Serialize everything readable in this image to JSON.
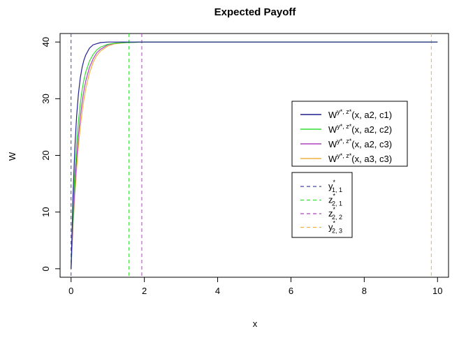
{
  "chart_data": {
    "type": "line",
    "title": "Expected Payoff",
    "xlabel": "x",
    "ylabel": "W",
    "xlim": [
      -0.3,
      10.3
    ],
    "ylim": [
      -1.5,
      41.5
    ],
    "xticks": [
      0,
      2,
      4,
      6,
      8,
      10
    ],
    "yticks": [
      0,
      10,
      20,
      30,
      40
    ],
    "grid": false,
    "series": [
      {
        "name": "W^{y*, z*}(x, a2, c1)",
        "color": "#1f1f8f",
        "x": [
          0,
          0.05,
          0.1,
          0.15,
          0.2,
          0.25,
          0.3,
          0.35,
          0.4,
          0.5,
          0.6,
          0.7,
          0.8,
          1.0,
          1.2,
          1.5,
          2.0,
          3.0,
          5.0,
          7.0,
          10.0
        ],
        "y": [
          0,
          12.4,
          20.9,
          26.8,
          30.8,
          33.6,
          35.5,
          36.8,
          37.7,
          38.9,
          39.5,
          39.7,
          39.9,
          40.0,
          40.0,
          40.0,
          40.0,
          40.0,
          40.0,
          40.0,
          40.0
        ]
      },
      {
        "name": "W^{y*, z*}(x, a2, c2)",
        "color": "#33dd33",
        "x": [
          0,
          0.05,
          0.1,
          0.15,
          0.2,
          0.25,
          0.3,
          0.35,
          0.4,
          0.5,
          0.6,
          0.7,
          0.8,
          1.0,
          1.2,
          1.5,
          2.0,
          3.0,
          5.0,
          7.0,
          10.0
        ],
        "y": [
          0,
          9.4,
          16.5,
          21.9,
          26.0,
          29.1,
          31.5,
          33.3,
          34.7,
          36.6,
          37.8,
          38.6,
          39.1,
          39.6,
          39.8,
          39.9,
          40.0,
          40.0,
          40.0,
          40.0,
          40.0
        ]
      },
      {
        "name": "W^{y*, z*}(x, a2, c3)",
        "color": "#b040c0",
        "x": [
          0,
          0.05,
          0.1,
          0.15,
          0.2,
          0.25,
          0.3,
          0.35,
          0.4,
          0.5,
          0.6,
          0.7,
          0.8,
          1.0,
          1.2,
          1.5,
          2.0,
          3.0,
          5.0,
          7.0,
          10.0
        ],
        "y": [
          0,
          7.9,
          14.2,
          19.3,
          23.4,
          26.7,
          29.3,
          31.4,
          33.1,
          35.5,
          37.0,
          38.1,
          38.7,
          39.5,
          39.8,
          39.9,
          40.0,
          40.0,
          40.0,
          40.0,
          40.0
        ]
      },
      {
        "name": "W^{y*, z*}(x, a3, c3)",
        "color": "#f0b040",
        "x": [
          0,
          0.05,
          0.1,
          0.15,
          0.2,
          0.25,
          0.3,
          0.35,
          0.4,
          0.5,
          0.6,
          0.7,
          0.8,
          1.0,
          1.2,
          1.5,
          2.0,
          3.0,
          5.0,
          7.0,
          10.0
        ],
        "y": [
          0,
          7.0,
          12.8,
          17.6,
          21.6,
          24.9,
          27.6,
          29.9,
          31.7,
          34.5,
          36.4,
          37.6,
          38.4,
          39.3,
          39.7,
          39.9,
          40.0,
          40.0,
          40.0,
          40.0,
          40.0
        ]
      }
    ],
    "vlines": [
      {
        "name": "y*1, 1",
        "x": 0.0,
        "color": "#4444aa"
      },
      {
        "name": "z*2, 1",
        "x": 1.58,
        "color": "#33dd33"
      },
      {
        "name": "z*2, 2",
        "x": 1.93,
        "color": "#b040c0"
      },
      {
        "name": "y*2, 3",
        "x": 9.83,
        "color": "#f0b040"
      }
    ],
    "legend_placement": "right",
    "legend_payoff": {
      "entries": [
        {
          "main": "W",
          "sup": "y*, z*",
          "args": "(x, a2, c1)",
          "color": "#1f1f8f"
        },
        {
          "main": "W",
          "sup": "y*, z*",
          "args": "(x, a2, c2)",
          "color": "#33dd33"
        },
        {
          "main": "W",
          "sup": "y*, z*",
          "args": "(x, a2, c3)",
          "color": "#b040c0"
        },
        {
          "main": "W",
          "sup": "y*, z*",
          "args": "(x, a3, c3)",
          "color": "#f0b040"
        }
      ]
    },
    "legend_thresholds": {
      "entries": [
        {
          "main": "y",
          "sup": "*",
          "sub": "1, 1",
          "color": "#4444aa"
        },
        {
          "main": "z",
          "sup": "*",
          "sub": "2, 1",
          "color": "#33dd33"
        },
        {
          "main": "z",
          "sup": "*",
          "sub": "2, 2",
          "color": "#b040c0"
        },
        {
          "main": "y",
          "sup": "*",
          "sub": "2, 3",
          "color": "#f0b040"
        }
      ]
    }
  }
}
